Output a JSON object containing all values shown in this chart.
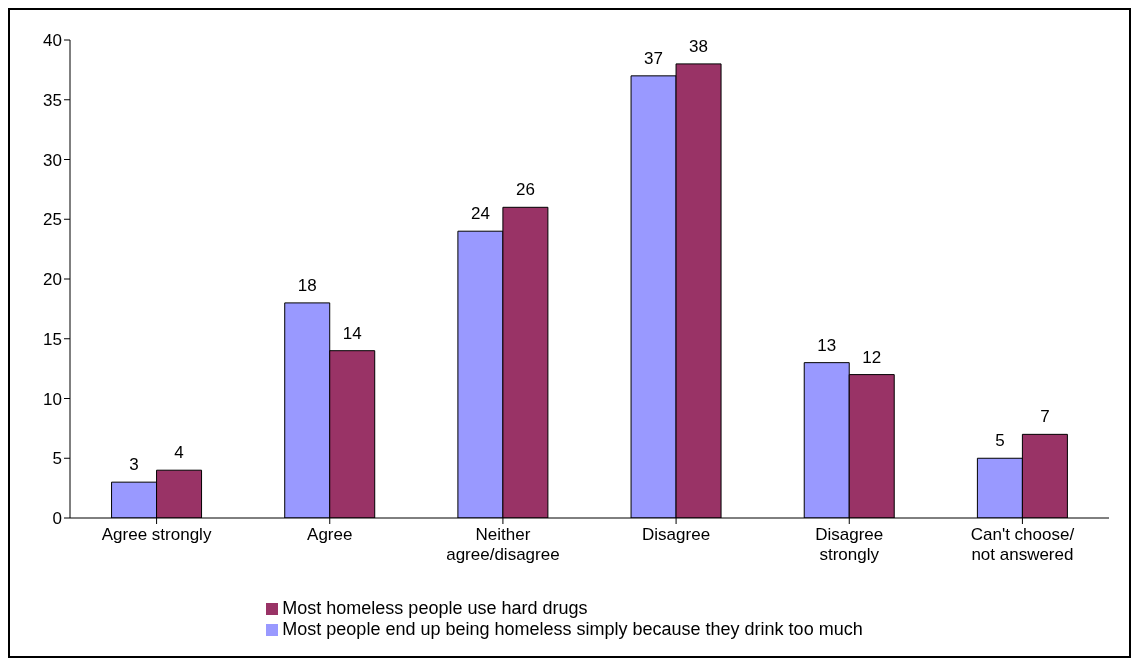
{
  "chart_data": {
    "type": "bar",
    "categories": [
      "Agree strongly",
      "Agree",
      "Neither agree/disagree",
      "Disagree",
      "Disagree strongly",
      "Can't choose/ not answered"
    ],
    "series": [
      {
        "name": "Most people end up being homeless simply because they drink too much",
        "color": "#9999ff",
        "values": [
          3,
          18,
          24,
          37,
          13,
          5
        ]
      },
      {
        "name": "Most homeless people use hard drugs",
        "color": "#993366",
        "values": [
          4,
          14,
          26,
          38,
          12,
          7
        ]
      }
    ],
    "ylim": [
      0,
      40
    ],
    "yticks": [
      0,
      5,
      10,
      15,
      20,
      25,
      30,
      35,
      40
    ],
    "grid": false,
    "legend": "bottom",
    "data_labels": true
  }
}
